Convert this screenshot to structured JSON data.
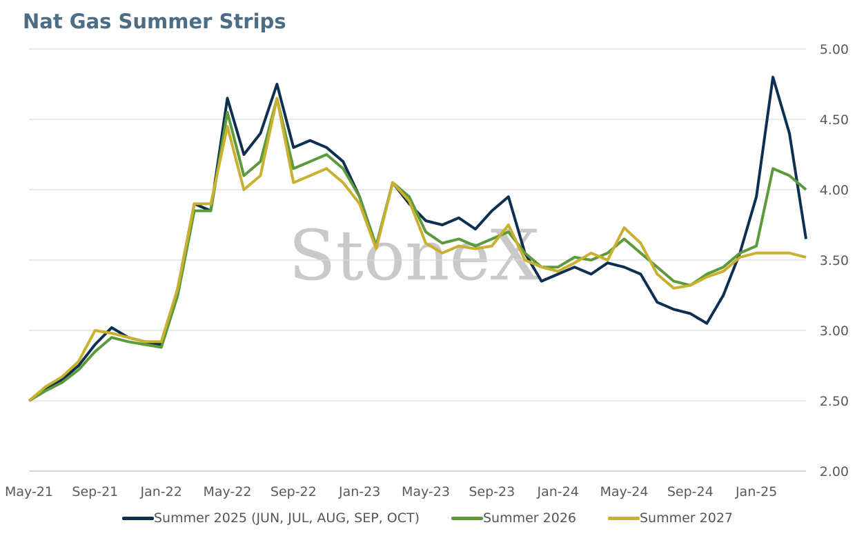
{
  "chart_data": {
    "type": "line",
    "title": "Nat Gas Summer Strips",
    "watermark": "StoneX",
    "xlabel": "",
    "ylabel": "",
    "ylim": [
      2.0,
      5.0
    ],
    "yticks": [
      "2.00",
      "2.50",
      "3.00",
      "3.50",
      "4.00",
      "4.50",
      "5.00"
    ],
    "y_axis_side": "right",
    "xticks": [
      "May-21",
      "Sep-21",
      "Jan-22",
      "May-22",
      "Sep-22",
      "Jan-23",
      "May-23",
      "Sep-23",
      "Jan-24",
      "May-24",
      "Sep-24",
      "Jan-25"
    ],
    "grid": "horizontal",
    "legend_position": "bottom",
    "x_dates": [
      "May-21",
      "Jun-21",
      "Jul-21",
      "Aug-21",
      "Sep-21",
      "Oct-21",
      "Nov-21",
      "Dec-21",
      "Jan-22",
      "Feb-22",
      "Mar-22",
      "Apr-22",
      "May-22",
      "Jun-22",
      "Jul-22",
      "Aug-22",
      "Sep-22",
      "Oct-22",
      "Nov-22",
      "Dec-22",
      "Jan-23",
      "Feb-23",
      "Mar-23",
      "Apr-23",
      "May-23",
      "Jun-23",
      "Jul-23",
      "Aug-23",
      "Sep-23",
      "Oct-23",
      "Nov-23",
      "Dec-23",
      "Jan-24",
      "Feb-24",
      "Mar-24",
      "Apr-24",
      "May-24",
      "Jun-24",
      "Jul-24",
      "Aug-24",
      "Sep-24",
      "Oct-24",
      "Nov-24",
      "Dec-24",
      "Jan-25",
      "Feb-25",
      "Mar-25",
      "Apr-25"
    ],
    "series": [
      {
        "name": "Summer 2025 (JUN, JUL, AUG, SEP, OCT)",
        "color": "#0d2f52",
        "values": [
          2.5,
          2.58,
          2.65,
          2.75,
          2.9,
          3.02,
          2.95,
          2.92,
          2.9,
          3.3,
          3.9,
          3.85,
          4.65,
          4.25,
          4.4,
          4.75,
          4.3,
          4.35,
          4.3,
          4.2,
          3.95,
          3.6,
          4.05,
          3.9,
          3.78,
          3.75,
          3.8,
          3.72,
          3.85,
          3.95,
          3.55,
          3.35,
          3.4,
          3.45,
          3.4,
          3.48,
          3.45,
          3.4,
          3.2,
          3.15,
          3.12,
          3.05,
          3.25,
          3.55,
          3.95,
          4.8,
          4.4,
          3.65
        ]
      },
      {
        "name": "Summer 2026",
        "color": "#5c9a3c",
        "values": [
          2.5,
          2.57,
          2.63,
          2.72,
          2.85,
          2.95,
          2.92,
          2.9,
          2.88,
          3.25,
          3.85,
          3.85,
          4.55,
          4.1,
          4.2,
          4.65,
          4.15,
          4.2,
          4.25,
          4.15,
          3.95,
          3.6,
          4.05,
          3.95,
          3.7,
          3.62,
          3.65,
          3.6,
          3.65,
          3.7,
          3.55,
          3.45,
          3.45,
          3.52,
          3.5,
          3.55,
          3.65,
          3.55,
          3.45,
          3.35,
          3.32,
          3.4,
          3.45,
          3.55,
          3.6,
          4.15,
          4.1,
          4.0
        ]
      },
      {
        "name": "Summer 2027",
        "color": "#c9b02e",
        "values": [
          2.5,
          2.6,
          2.67,
          2.78,
          3.0,
          2.98,
          2.95,
          2.92,
          2.92,
          3.3,
          3.9,
          3.9,
          4.45,
          4.0,
          4.1,
          4.65,
          4.05,
          4.1,
          4.15,
          4.05,
          3.9,
          3.58,
          4.05,
          3.92,
          3.62,
          3.55,
          3.6,
          3.58,
          3.6,
          3.75,
          3.5,
          3.45,
          3.42,
          3.48,
          3.55,
          3.5,
          3.73,
          3.62,
          3.4,
          3.3,
          3.32,
          3.38,
          3.42,
          3.52,
          3.55,
          3.55,
          3.55,
          3.52
        ]
      }
    ]
  }
}
